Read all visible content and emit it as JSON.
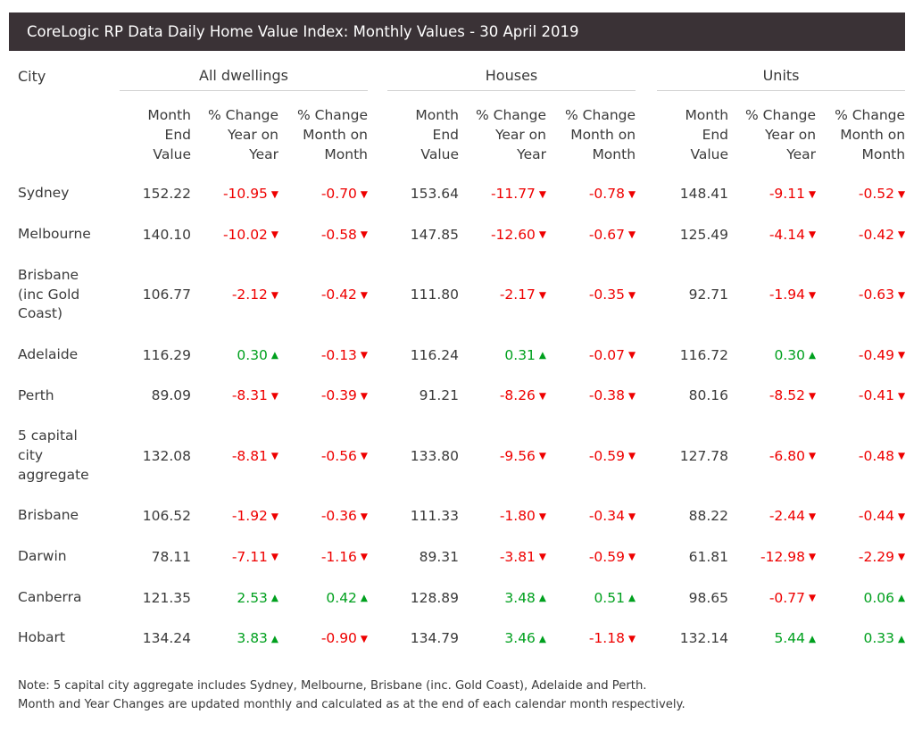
{
  "header": {
    "title": "CoreLogic RP Data Daily Home Value Index: Monthly Values - 30 April 2019",
    "bar_color": "#3a3236"
  },
  "colors": {
    "positive": "#00a01e",
    "negative": "#ee0000",
    "text": "#3a3a3a",
    "rule": "#d2d2d2"
  },
  "icons": {
    "up": "▲",
    "down": "▼"
  },
  "table": {
    "city_header": "City",
    "groups": [
      "All dwellings",
      "Houses",
      "Units"
    ],
    "sub_headers": [
      "Month\nEnd\nValue",
      "% Change\nYear on\nYear",
      "% Change\nMonth on\nMonth"
    ],
    "rows": [
      {
        "city": "Sydney",
        "cells": [
          {
            "v": "152.22"
          },
          {
            "v": "-10.95",
            "d": "down"
          },
          {
            "v": "-0.70",
            "d": "down"
          },
          {
            "v": "153.64"
          },
          {
            "v": "-11.77",
            "d": "down"
          },
          {
            "v": "-0.78",
            "d": "down"
          },
          {
            "v": "148.41"
          },
          {
            "v": "-9.11",
            "d": "down"
          },
          {
            "v": "-0.52",
            "d": "down"
          }
        ]
      },
      {
        "city": "Melbourne",
        "cells": [
          {
            "v": "140.10"
          },
          {
            "v": "-10.02",
            "d": "down"
          },
          {
            "v": "-0.58",
            "d": "down"
          },
          {
            "v": "147.85"
          },
          {
            "v": "-12.60",
            "d": "down"
          },
          {
            "v": "-0.67",
            "d": "down"
          },
          {
            "v": "125.49"
          },
          {
            "v": "-4.14",
            "d": "down"
          },
          {
            "v": "-0.42",
            "d": "down"
          }
        ]
      },
      {
        "city": "Brisbane (inc Gold Coast)",
        "cells": [
          {
            "v": "106.77"
          },
          {
            "v": "-2.12",
            "d": "down"
          },
          {
            "v": "-0.42",
            "d": "down"
          },
          {
            "v": "111.80"
          },
          {
            "v": "-2.17",
            "d": "down"
          },
          {
            "v": "-0.35",
            "d": "down"
          },
          {
            "v": "92.71"
          },
          {
            "v": "-1.94",
            "d": "down"
          },
          {
            "v": "-0.63",
            "d": "down"
          }
        ]
      },
      {
        "city": "Adelaide",
        "cells": [
          {
            "v": "116.29"
          },
          {
            "v": "0.30",
            "d": "up"
          },
          {
            "v": "-0.13",
            "d": "down"
          },
          {
            "v": "116.24"
          },
          {
            "v": "0.31",
            "d": "up"
          },
          {
            "v": "-0.07",
            "d": "down"
          },
          {
            "v": "116.72"
          },
          {
            "v": "0.30",
            "d": "up"
          },
          {
            "v": "-0.49",
            "d": "down"
          }
        ]
      },
      {
        "city": "Perth",
        "cells": [
          {
            "v": "89.09"
          },
          {
            "v": "-8.31",
            "d": "down"
          },
          {
            "v": "-0.39",
            "d": "down"
          },
          {
            "v": "91.21"
          },
          {
            "v": "-8.26",
            "d": "down"
          },
          {
            "v": "-0.38",
            "d": "down"
          },
          {
            "v": "80.16"
          },
          {
            "v": "-8.52",
            "d": "down"
          },
          {
            "v": "-0.41",
            "d": "down"
          }
        ]
      },
      {
        "city": "5 capital city aggregate",
        "cells": [
          {
            "v": "132.08"
          },
          {
            "v": "-8.81",
            "d": "down"
          },
          {
            "v": "-0.56",
            "d": "down"
          },
          {
            "v": "133.80"
          },
          {
            "v": "-9.56",
            "d": "down"
          },
          {
            "v": "-0.59",
            "d": "down"
          },
          {
            "v": "127.78"
          },
          {
            "v": "-6.80",
            "d": "down"
          },
          {
            "v": "-0.48",
            "d": "down"
          }
        ]
      },
      {
        "city": "Brisbane",
        "cells": [
          {
            "v": "106.52"
          },
          {
            "v": "-1.92",
            "d": "down"
          },
          {
            "v": "-0.36",
            "d": "down"
          },
          {
            "v": "111.33"
          },
          {
            "v": "-1.80",
            "d": "down"
          },
          {
            "v": "-0.34",
            "d": "down"
          },
          {
            "v": "88.22"
          },
          {
            "v": "-2.44",
            "d": "down"
          },
          {
            "v": "-0.44",
            "d": "down"
          }
        ]
      },
      {
        "city": "Darwin",
        "cells": [
          {
            "v": "78.11"
          },
          {
            "v": "-7.11",
            "d": "down"
          },
          {
            "v": "-1.16",
            "d": "down"
          },
          {
            "v": "89.31"
          },
          {
            "v": "-3.81",
            "d": "down"
          },
          {
            "v": "-0.59",
            "d": "down"
          },
          {
            "v": "61.81"
          },
          {
            "v": "-12.98",
            "d": "down"
          },
          {
            "v": "-2.29",
            "d": "down"
          }
        ]
      },
      {
        "city": "Canberra",
        "cells": [
          {
            "v": "121.35"
          },
          {
            "v": "2.53",
            "d": "up"
          },
          {
            "v": "0.42",
            "d": "up"
          },
          {
            "v": "128.89"
          },
          {
            "v": "3.48",
            "d": "up"
          },
          {
            "v": "0.51",
            "d": "up"
          },
          {
            "v": "98.65"
          },
          {
            "v": "-0.77",
            "d": "down"
          },
          {
            "v": "0.06",
            "d": "up"
          }
        ]
      },
      {
        "city": "Hobart",
        "cells": [
          {
            "v": "134.24"
          },
          {
            "v": "3.83",
            "d": "up"
          },
          {
            "v": "-0.90",
            "d": "down"
          },
          {
            "v": "134.79"
          },
          {
            "v": "3.46",
            "d": "up"
          },
          {
            "v": "-1.18",
            "d": "down"
          },
          {
            "v": "132.14"
          },
          {
            "v": "5.44",
            "d": "up"
          },
          {
            "v": "0.33",
            "d": "up"
          }
        ]
      }
    ]
  },
  "footer": {
    "note_line1": "Note: 5 capital city aggregate includes Sydney, Melbourne, Brisbane (inc. Gold Coast), Adelaide and Perth.",
    "note_line2": "Month and Year Changes are updated monthly and calculated as at the end of each calendar month respectively."
  },
  "chart_data": {
    "type": "table",
    "title": "CoreLogic RP Data Daily Home Value Index: Monthly Values - 30 April 2019",
    "column_groups": [
      "All dwellings",
      "Houses",
      "Units"
    ],
    "columns_per_group": [
      "Month End Value",
      "% Change Year on Year",
      "% Change Month on Month"
    ],
    "rows": [
      {
        "city": "Sydney",
        "all_dwellings": [
          152.22,
          -10.95,
          -0.7
        ],
        "houses": [
          153.64,
          -11.77,
          -0.78
        ],
        "units": [
          148.41,
          -9.11,
          -0.52
        ]
      },
      {
        "city": "Melbourne",
        "all_dwellings": [
          140.1,
          -10.02,
          -0.58
        ],
        "houses": [
          147.85,
          -12.6,
          -0.67
        ],
        "units": [
          125.49,
          -4.14,
          -0.42
        ]
      },
      {
        "city": "Brisbane (inc Gold Coast)",
        "all_dwellings": [
          106.77,
          -2.12,
          -0.42
        ],
        "houses": [
          111.8,
          -2.17,
          -0.35
        ],
        "units": [
          92.71,
          -1.94,
          -0.63
        ]
      },
      {
        "city": "Adelaide",
        "all_dwellings": [
          116.29,
          0.3,
          -0.13
        ],
        "houses": [
          116.24,
          0.31,
          -0.07
        ],
        "units": [
          116.72,
          0.3,
          -0.49
        ]
      },
      {
        "city": "Perth",
        "all_dwellings": [
          89.09,
          -8.31,
          -0.39
        ],
        "houses": [
          91.21,
          -8.26,
          -0.38
        ],
        "units": [
          80.16,
          -8.52,
          -0.41
        ]
      },
      {
        "city": "5 capital city aggregate",
        "all_dwellings": [
          132.08,
          -8.81,
          -0.56
        ],
        "houses": [
          133.8,
          -9.56,
          -0.59
        ],
        "units": [
          127.78,
          -6.8,
          -0.48
        ]
      },
      {
        "city": "Brisbane",
        "all_dwellings": [
          106.52,
          -1.92,
          -0.36
        ],
        "houses": [
          111.33,
          -1.8,
          -0.34
        ],
        "units": [
          88.22,
          -2.44,
          -0.44
        ]
      },
      {
        "city": "Darwin",
        "all_dwellings": [
          78.11,
          -7.11,
          -1.16
        ],
        "houses": [
          89.31,
          -3.81,
          -0.59
        ],
        "units": [
          61.81,
          -12.98,
          -2.29
        ]
      },
      {
        "city": "Canberra",
        "all_dwellings": [
          121.35,
          2.53,
          0.42
        ],
        "houses": [
          128.89,
          3.48,
          0.51
        ],
        "units": [
          98.65,
          -0.77,
          0.06
        ]
      },
      {
        "city": "Hobart",
        "all_dwellings": [
          134.24,
          3.83,
          -0.9
        ],
        "houses": [
          134.79,
          3.46,
          -1.18
        ],
        "units": [
          132.14,
          5.44,
          0.33
        ]
      }
    ],
    "legend": "red down-triangle = decline, green up-triangle = increase"
  }
}
